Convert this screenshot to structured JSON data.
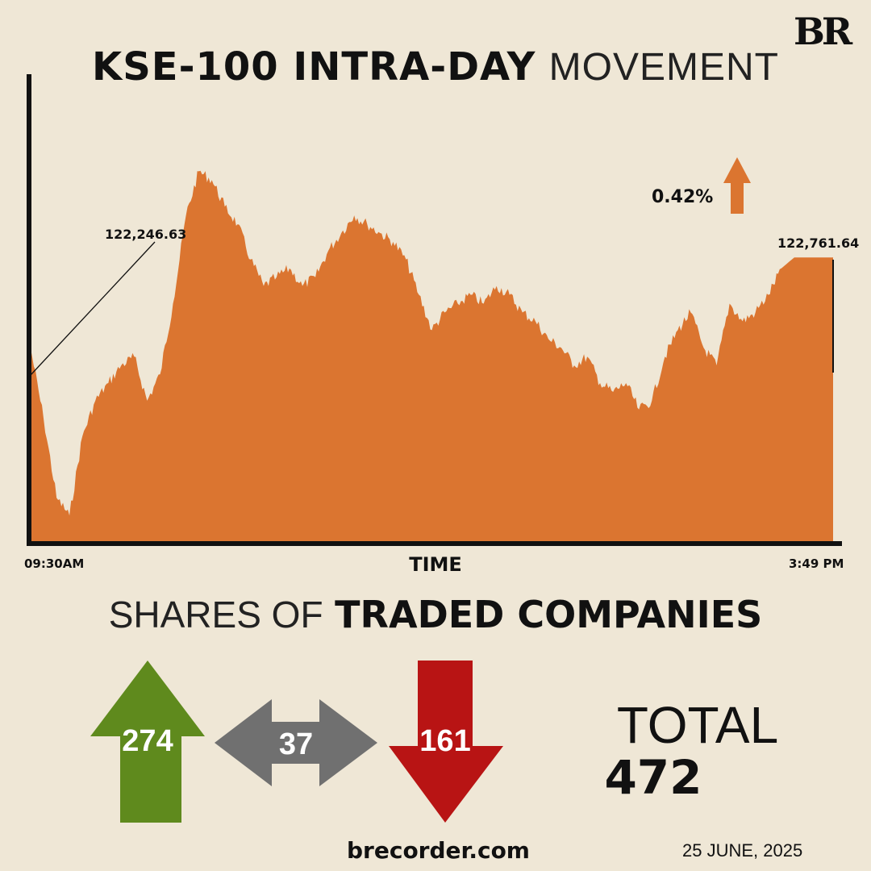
{
  "brand": {
    "logo_text": "BR",
    "website": "brecorder.com",
    "date": "25 JUNE, 2025"
  },
  "header": {
    "title_bold": "KSE-100 INTRA-DAY",
    "title_light": "MOVEMENT"
  },
  "change": {
    "percent_text": "0.42%",
    "direction": "up",
    "color": "#db7530"
  },
  "colors": {
    "background": "#efe7d6",
    "area": "#db7530",
    "up": "#5f8a1d",
    "unchanged": "#707070",
    "down": "#b81414"
  },
  "chart_data": {
    "type": "area",
    "title": "KSE-100 INTRA-DAY MOVEMENT",
    "xlabel": "TIME",
    "ylabel": "",
    "x_tick_labels": [
      "09:30AM",
      "3:49 PM"
    ],
    "annotations": [
      "122,246.63",
      "122,761.64"
    ],
    "ylim": [
      121150,
      123800
    ],
    "series": [
      {
        "values": [
          122246.63,
          121850,
          121400,
          121300,
          121750,
          121950,
          122050,
          122150,
          122200,
          121950,
          122100,
          122500,
          123000,
          123250,
          123200,
          123050,
          122950,
          122750,
          122600,
          122650,
          122700,
          122600,
          122650,
          122800,
          122900,
          123000,
          122950,
          122900,
          122850,
          122750,
          122550,
          122350,
          122450,
          122500,
          122550,
          122500,
          122600,
          122550,
          122450,
          122400,
          122300,
          122250,
          122150,
          122200,
          122050,
          122000,
          122050,
          121900,
          121950,
          122200,
          122350,
          122450,
          122250,
          122150,
          122500,
          122400,
          122450,
          122550,
          122700,
          122761.64,
          122761.64,
          122761.64,
          122761.64
        ]
      }
    ]
  },
  "traded": {
    "heading_light": "SHARES OF",
    "heading_bold": "TRADED COMPANIES",
    "advanced": "274",
    "unchanged": "37",
    "declined": "161",
    "total_label": "TOTAL",
    "total_value": "472"
  }
}
